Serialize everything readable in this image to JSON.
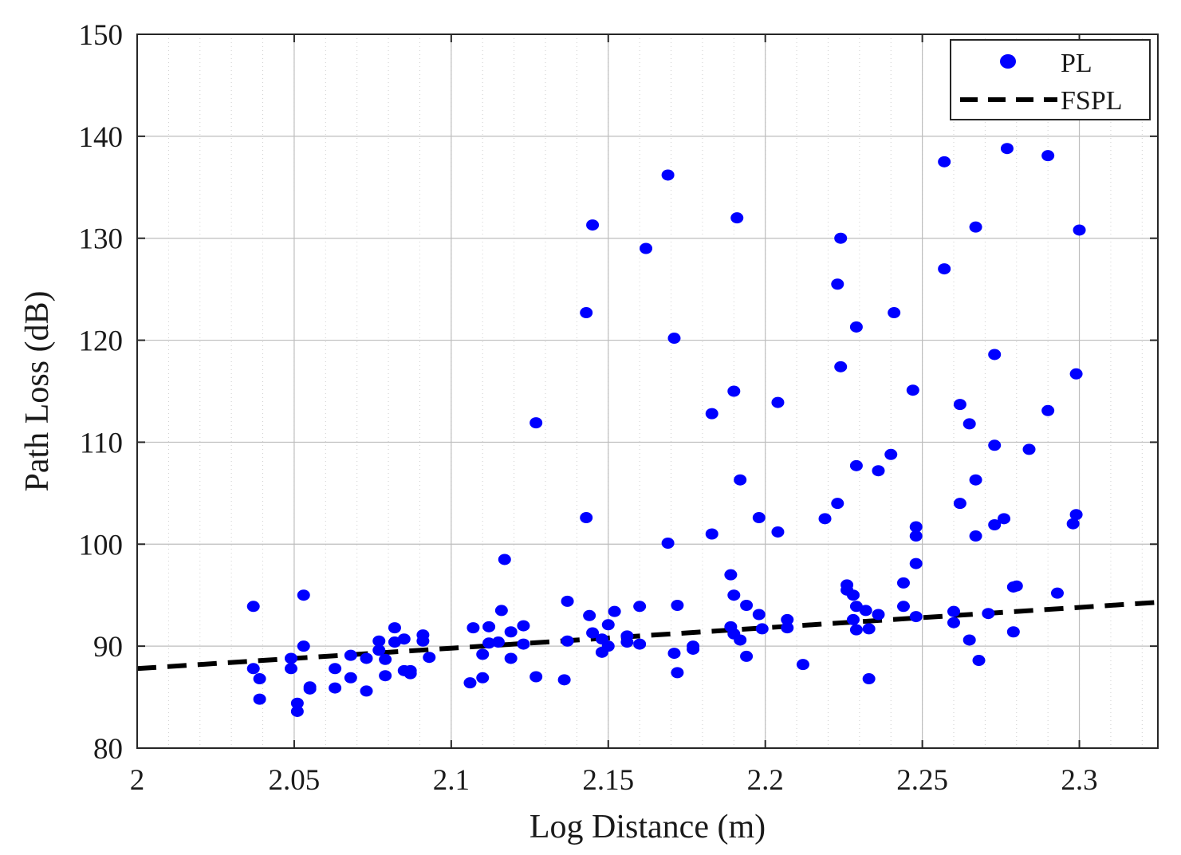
{
  "chart_data": {
    "type": "scatter",
    "xlabel": "Log Distance (m)",
    "ylabel": "Path Loss (dB)",
    "xlim": [
      2,
      2.325
    ],
    "ylim": [
      80,
      150
    ],
    "xticks": [
      2,
      2.05,
      2.1,
      2.15,
      2.2,
      2.25,
      2.3
    ],
    "xtick_labels": [
      "2",
      "2.05",
      "2.1",
      "2.15",
      "2.2",
      "2.25",
      "2.3"
    ],
    "yticks": [
      80,
      90,
      100,
      110,
      120,
      130,
      140,
      150
    ],
    "ytick_labels": [
      "80",
      "90",
      "100",
      "110",
      "120",
      "130",
      "140",
      "150"
    ],
    "grid": true,
    "minor_grid": true,
    "legend_position": "top-right",
    "series": [
      {
        "name": "PL",
        "kind": "scatter",
        "color": "#0000ff",
        "points": [
          [
            2.037,
            93.9
          ],
          [
            2.037,
            87.8
          ],
          [
            2.039,
            86.8
          ],
          [
            2.039,
            84.8
          ],
          [
            2.049,
            88.8
          ],
          [
            2.049,
            87.8
          ],
          [
            2.051,
            84.4
          ],
          [
            2.051,
            83.6
          ],
          [
            2.053,
            95.0
          ],
          [
            2.053,
            90.0
          ],
          [
            2.055,
            86.0
          ],
          [
            2.055,
            85.8
          ],
          [
            2.063,
            87.8
          ],
          [
            2.063,
            85.9
          ],
          [
            2.068,
            89.1
          ],
          [
            2.068,
            86.9
          ],
          [
            2.073,
            88.8
          ],
          [
            2.073,
            85.6
          ],
          [
            2.077,
            90.5
          ],
          [
            2.077,
            89.6
          ],
          [
            2.079,
            88.7
          ],
          [
            2.079,
            87.1
          ],
          [
            2.082,
            91.8
          ],
          [
            2.082,
            90.4
          ],
          [
            2.085,
            90.7
          ],
          [
            2.085,
            87.6
          ],
          [
            2.087,
            87.6
          ],
          [
            2.087,
            87.3
          ],
          [
            2.091,
            91.1
          ],
          [
            2.091,
            90.5
          ],
          [
            2.093,
            88.9
          ],
          [
            2.106,
            86.4
          ],
          [
            2.107,
            91.8
          ],
          [
            2.11,
            89.2
          ],
          [
            2.11,
            86.9
          ],
          [
            2.112,
            91.9
          ],
          [
            2.112,
            90.3
          ],
          [
            2.115,
            90.4
          ],
          [
            2.116,
            93.5
          ],
          [
            2.117,
            98.5
          ],
          [
            2.119,
            91.4
          ],
          [
            2.119,
            88.8
          ],
          [
            2.123,
            92.0
          ],
          [
            2.123,
            90.2
          ],
          [
            2.127,
            111.9
          ],
          [
            2.127,
            87.0
          ],
          [
            2.136,
            86.7
          ],
          [
            2.137,
            94.4
          ],
          [
            2.137,
            90.5
          ],
          [
            2.143,
            122.7
          ],
          [
            2.143,
            102.6
          ],
          [
            2.144,
            93.0
          ],
          [
            2.145,
            131.3
          ],
          [
            2.145,
            91.3
          ],
          [
            2.148,
            90.7
          ],
          [
            2.148,
            89.4
          ],
          [
            2.15,
            92.1
          ],
          [
            2.15,
            90.0
          ],
          [
            2.152,
            93.4
          ],
          [
            2.156,
            91.0
          ],
          [
            2.156,
            90.4
          ],
          [
            2.16,
            93.9
          ],
          [
            2.16,
            90.2
          ],
          [
            2.162,
            129.0
          ],
          [
            2.169,
            136.2
          ],
          [
            2.169,
            100.1
          ],
          [
            2.171,
            120.2
          ],
          [
            2.171,
            89.3
          ],
          [
            2.172,
            94.0
          ],
          [
            2.172,
            87.4
          ],
          [
            2.177,
            90.0
          ],
          [
            2.177,
            89.7
          ],
          [
            2.183,
            112.8
          ],
          [
            2.183,
            101.0
          ],
          [
            2.189,
            91.9
          ],
          [
            2.189,
            97.0
          ],
          [
            2.19,
            95.0
          ],
          [
            2.19,
            115.0
          ],
          [
            2.19,
            91.2
          ],
          [
            2.191,
            132.0
          ],
          [
            2.192,
            106.3
          ],
          [
            2.192,
            90.6
          ],
          [
            2.194,
            94.0
          ],
          [
            2.194,
            89.0
          ],
          [
            2.198,
            102.6
          ],
          [
            2.198,
            93.1
          ],
          [
            2.199,
            91.7
          ],
          [
            2.204,
            113.9
          ],
          [
            2.204,
            101.2
          ],
          [
            2.207,
            92.6
          ],
          [
            2.207,
            91.8
          ],
          [
            2.212,
            88.2
          ],
          [
            2.219,
            102.5
          ],
          [
            2.223,
            125.5
          ],
          [
            2.223,
            104.0
          ],
          [
            2.224,
            130.0
          ],
          [
            2.224,
            117.4
          ],
          [
            2.226,
            96.0
          ],
          [
            2.226,
            95.5
          ],
          [
            2.228,
            95.0
          ],
          [
            2.228,
            92.6
          ],
          [
            2.229,
            121.3
          ],
          [
            2.229,
            107.7
          ],
          [
            2.229,
            93.9
          ],
          [
            2.229,
            91.6
          ],
          [
            2.232,
            93.5
          ],
          [
            2.233,
            91.7
          ],
          [
            2.233,
            86.8
          ],
          [
            2.236,
            107.2
          ],
          [
            2.236,
            93.1
          ],
          [
            2.24,
            108.8
          ],
          [
            2.241,
            122.7
          ],
          [
            2.244,
            96.2
          ],
          [
            2.244,
            93.9
          ],
          [
            2.247,
            115.1
          ],
          [
            2.248,
            101.7
          ],
          [
            2.248,
            100.8
          ],
          [
            2.248,
            98.1
          ],
          [
            2.248,
            92.9
          ],
          [
            2.257,
            137.5
          ],
          [
            2.257,
            127.0
          ],
          [
            2.26,
            93.4
          ],
          [
            2.26,
            92.3
          ],
          [
            2.262,
            113.7
          ],
          [
            2.262,
            104.0
          ],
          [
            2.265,
            111.8
          ],
          [
            2.265,
            90.6
          ],
          [
            2.267,
            131.1
          ],
          [
            2.267,
            106.3
          ],
          [
            2.267,
            100.8
          ],
          [
            2.268,
            88.6
          ],
          [
            2.271,
            93.2
          ],
          [
            2.273,
            118.6
          ],
          [
            2.273,
            109.7
          ],
          [
            2.273,
            101.9
          ],
          [
            2.276,
            102.5
          ],
          [
            2.277,
            138.8
          ],
          [
            2.279,
            95.8
          ],
          [
            2.279,
            91.4
          ],
          [
            2.28,
            95.9
          ],
          [
            2.284,
            109.3
          ],
          [
            2.29,
            138.1
          ],
          [
            2.29,
            113.1
          ],
          [
            2.293,
            95.2
          ],
          [
            2.298,
            102.0
          ],
          [
            2.299,
            116.7
          ],
          [
            2.299,
            102.9
          ],
          [
            2.3,
            130.8
          ]
        ]
      },
      {
        "name": "FSPL",
        "kind": "line",
        "style": "dashed",
        "color": "#000000",
        "x": [
          2,
          2.325
        ],
        "y": [
          87.8,
          94.3
        ]
      }
    ]
  }
}
